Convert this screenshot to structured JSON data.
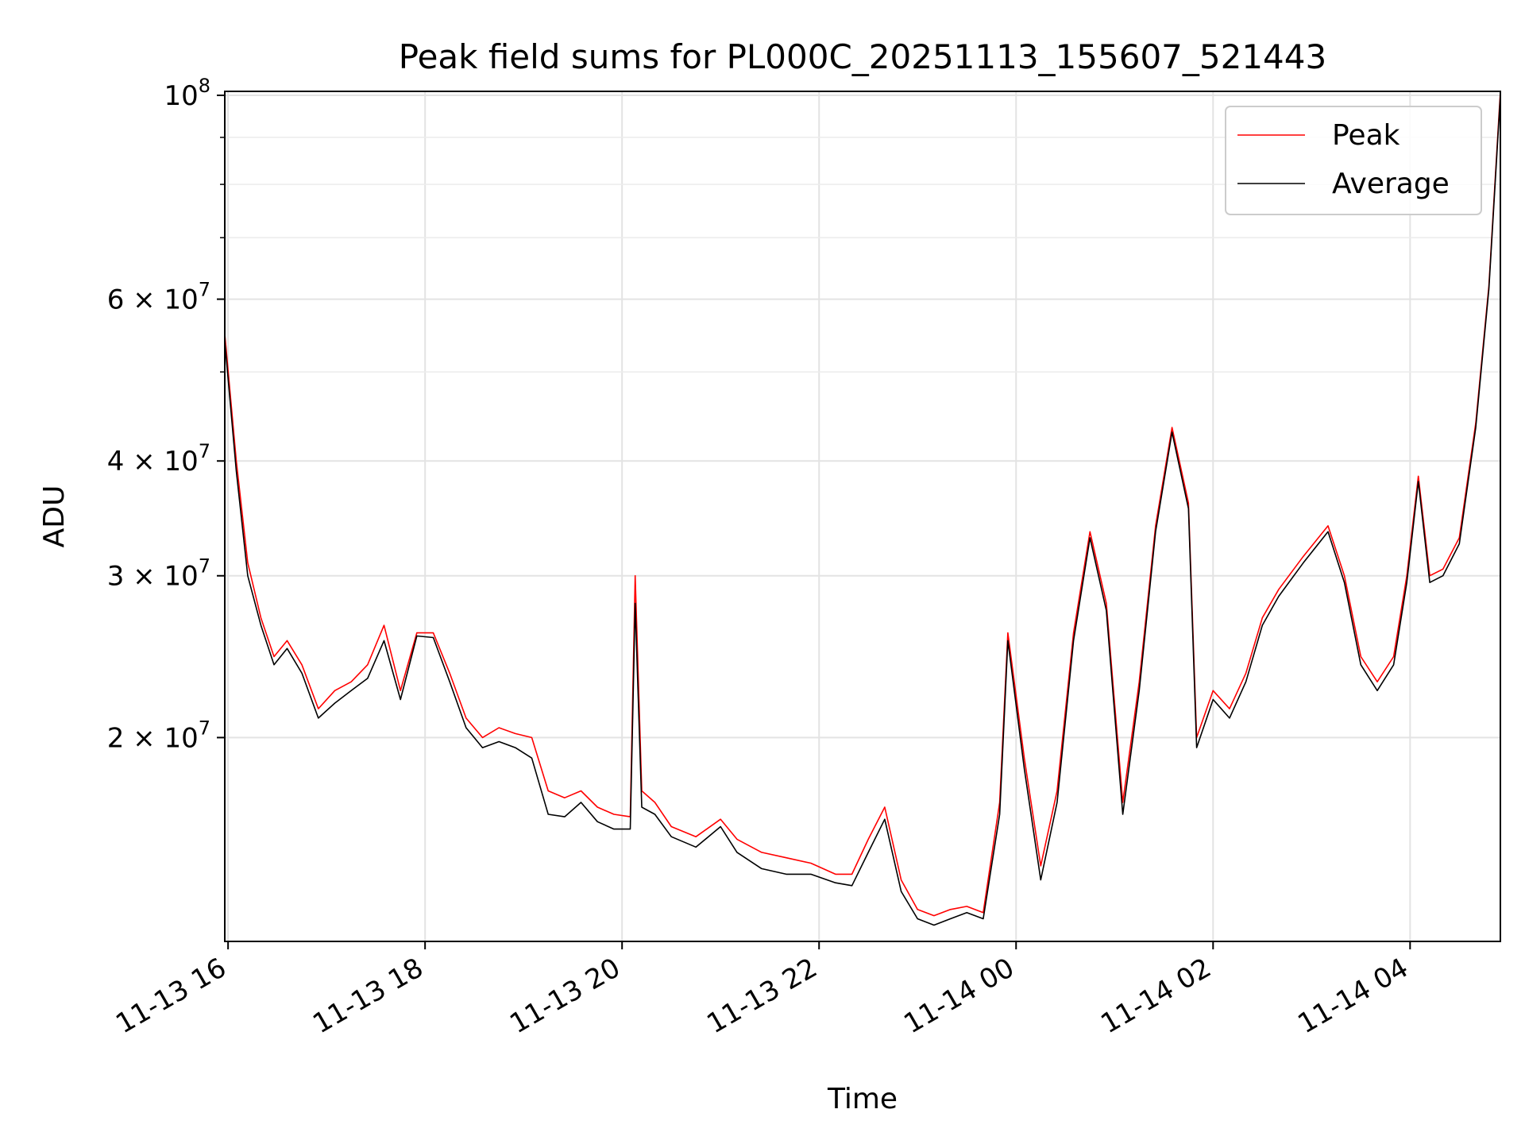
{
  "chart_data": {
    "type": "line",
    "title": "Peak field sums for PL000C_20251113_155607_521443",
    "xlabel": "Time",
    "ylabel": "ADU",
    "yscale": "log",
    "ylim": [
      12000000,
      101000000
    ],
    "xlim": [
      "11-13 15:58",
      "11-14 04:55"
    ],
    "grid": true,
    "legend_position": "upper right",
    "x_ticks": [
      "11-13 16",
      "11-13 18",
      "11-13 20",
      "11-13 22",
      "11-14 00",
      "11-14 02",
      "11-14 04"
    ],
    "y_ticks": [
      {
        "value": 100000000,
        "label": "10^8"
      },
      {
        "value": 60000000,
        "label": "6×10^7"
      },
      {
        "value": 40000000,
        "label": "4×10^7"
      },
      {
        "value": 30000000,
        "label": "3×10^7"
      },
      {
        "value": 20000000,
        "label": "2×10^7"
      }
    ],
    "series": [
      {
        "name": "Peak",
        "color": "#ff0000",
        "x": [
          "11-13 15:58",
          "11-13 16:05",
          "11-13 16:12",
          "11-13 16:20",
          "11-13 16:28",
          "11-13 16:36",
          "11-13 16:45",
          "11-13 16:55",
          "11-13 17:05",
          "11-13 17:15",
          "11-13 17:25",
          "11-13 17:35",
          "11-13 17:45",
          "11-13 17:55",
          "11-13 18:05",
          "11-13 18:15",
          "11-13 18:25",
          "11-13 18:35",
          "11-13 18:45",
          "11-13 18:55",
          "11-13 19:05",
          "11-13 19:15",
          "11-13 19:25",
          "11-13 19:35",
          "11-13 19:45",
          "11-13 19:55",
          "11-13 20:05",
          "11-13 20:08",
          "11-13 20:12",
          "11-13 20:20",
          "11-13 20:30",
          "11-13 20:45",
          "11-13 21:00",
          "11-13 21:10",
          "11-13 21:25",
          "11-13 21:40",
          "11-13 21:55",
          "11-13 22:10",
          "11-13 22:20",
          "11-13 22:30",
          "11-13 22:40",
          "11-13 22:50",
          "11-13 23:00",
          "11-13 23:10",
          "11-13 23:20",
          "11-13 23:30",
          "11-13 23:40",
          "11-13 23:50",
          "11-13 23:55",
          "11-14 00:05",
          "11-14 00:15",
          "11-14 00:25",
          "11-14 00:35",
          "11-14 00:45",
          "11-14 00:55",
          "11-14 01:05",
          "11-14 01:15",
          "11-14 01:25",
          "11-14 01:35",
          "11-14 01:45",
          "11-14 01:50",
          "11-14 02:00",
          "11-14 02:10",
          "11-14 02:20",
          "11-14 02:30",
          "11-14 02:40",
          "11-14 02:55",
          "11-14 03:10",
          "11-14 03:20",
          "11-14 03:30",
          "11-14 03:40",
          "11-14 03:50",
          "11-14 03:58",
          "11-14 04:05",
          "11-14 04:12",
          "11-14 04:20",
          "11-14 04:30",
          "11-14 04:40",
          "11-14 04:48",
          "11-14 04:55"
        ],
        "values": [
          55000000,
          40000000,
          31000000,
          27000000,
          24500000,
          25500000,
          24000000,
          21500000,
          22500000,
          23000000,
          24000000,
          26500000,
          22500000,
          26000000,
          26000000,
          23500000,
          21000000,
          20000000,
          20500000,
          20200000,
          20000000,
          17500000,
          17200000,
          17500000,
          16800000,
          16500000,
          16400000,
          30000000,
          17500000,
          17000000,
          16000000,
          15600000,
          16300000,
          15500000,
          15000000,
          14800000,
          14600000,
          14200000,
          14200000,
          15500000,
          16800000,
          14000000,
          13000000,
          12800000,
          13000000,
          13100000,
          12900000,
          17000000,
          26000000,
          19000000,
          14500000,
          17500000,
          26000000,
          33500000,
          28000000,
          17000000,
          23000000,
          34000000,
          43500000,
          36000000,
          20000000,
          22500000,
          21500000,
          23500000,
          27000000,
          29000000,
          31500000,
          34000000,
          30000000,
          24500000,
          23000000,
          24500000,
          30000000,
          38500000,
          30000000,
          30500000,
          33000000,
          44000000,
          62000000,
          101000000
        ]
      },
      {
        "name": "Average",
        "color": "#000000",
        "x": [
          "11-13 15:58",
          "11-13 16:05",
          "11-13 16:12",
          "11-13 16:20",
          "11-13 16:28",
          "11-13 16:36",
          "11-13 16:45",
          "11-13 16:55",
          "11-13 17:05",
          "11-13 17:15",
          "11-13 17:25",
          "11-13 17:35",
          "11-13 17:45",
          "11-13 17:55",
          "11-13 18:05",
          "11-13 18:15",
          "11-13 18:25",
          "11-13 18:35",
          "11-13 18:45",
          "11-13 18:55",
          "11-13 19:05",
          "11-13 19:15",
          "11-13 19:25",
          "11-13 19:35",
          "11-13 19:45",
          "11-13 19:55",
          "11-13 20:05",
          "11-13 20:08",
          "11-13 20:12",
          "11-13 20:20",
          "11-13 20:30",
          "11-13 20:45",
          "11-13 21:00",
          "11-13 21:10",
          "11-13 21:25",
          "11-13 21:40",
          "11-13 21:55",
          "11-13 22:10",
          "11-13 22:20",
          "11-13 22:30",
          "11-13 22:40",
          "11-13 22:50",
          "11-13 23:00",
          "11-13 23:10",
          "11-13 23:20",
          "11-13 23:30",
          "11-13 23:40",
          "11-13 23:50",
          "11-13 23:55",
          "11-14 00:05",
          "11-14 00:15",
          "11-14 00:25",
          "11-14 00:35",
          "11-14 00:45",
          "11-14 00:55",
          "11-14 01:05",
          "11-14 01:15",
          "11-14 01:25",
          "11-14 01:35",
          "11-14 01:45",
          "11-14 01:50",
          "11-14 02:00",
          "11-14 02:10",
          "11-14 02:20",
          "11-14 02:30",
          "11-14 02:40",
          "11-14 02:55",
          "11-14 03:10",
          "11-14 03:20",
          "11-14 03:30",
          "11-14 03:40",
          "11-14 03:50",
          "11-14 03:58",
          "11-14 04:05",
          "11-14 04:12",
          "11-14 04:20",
          "11-14 04:30",
          "11-14 04:40",
          "11-14 04:48",
          "11-14 04:55"
        ],
        "values": [
          54000000,
          39000000,
          30000000,
          26500000,
          24000000,
          25000000,
          23500000,
          21000000,
          21800000,
          22500000,
          23200000,
          25500000,
          22000000,
          25800000,
          25700000,
          23000000,
          20500000,
          19500000,
          19800000,
          19500000,
          19000000,
          16500000,
          16400000,
          17000000,
          16200000,
          15900000,
          15900000,
          28000000,
          16800000,
          16500000,
          15600000,
          15200000,
          16000000,
          15000000,
          14400000,
          14200000,
          14200000,
          13900000,
          13800000,
          15000000,
          16300000,
          13600000,
          12700000,
          12500000,
          12700000,
          12900000,
          12700000,
          16500000,
          25500000,
          18500000,
          14000000,
          17000000,
          25500000,
          33000000,
          27500000,
          16500000,
          22500000,
          33500000,
          43000000,
          35500000,
          19500000,
          22000000,
          21000000,
          23000000,
          26500000,
          28500000,
          31000000,
          33500000,
          29500000,
          24000000,
          22500000,
          24000000,
          29500000,
          38000000,
          29500000,
          30000000,
          32500000,
          43500000,
          61500000,
          100000000
        ]
      }
    ]
  }
}
